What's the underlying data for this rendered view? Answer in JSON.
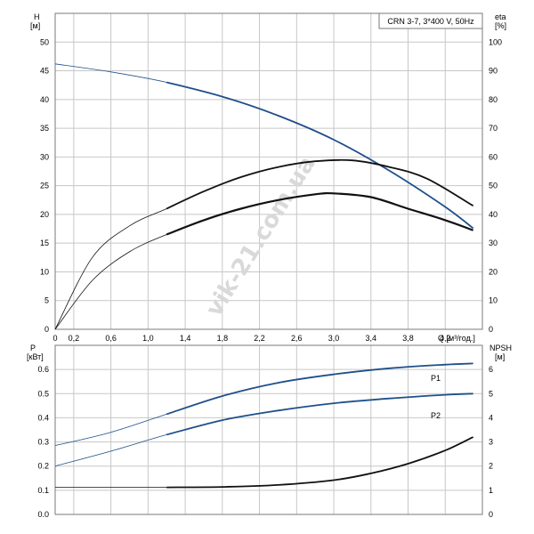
{
  "colors": {
    "blue": "#1f4f8a",
    "black": "#111111",
    "grid": "#c7c7c7"
  },
  "chart_data": [
    {
      "type": "line",
      "title": "CRN 3-7, 3*400 V, 50Hz",
      "ylabel_left": [
        "H",
        "[м]"
      ],
      "ylabel_right": [
        "eta",
        "[%]"
      ],
      "xlabel": "Q [м³/год.]",
      "xlim": [
        0,
        4.6
      ],
      "ylim": [
        0,
        55
      ],
      "ylim_right": [
        0,
        110
      ],
      "x_ticks": [
        "0",
        "0,2",
        "0,6",
        "1,0",
        "1,4",
        "1,8",
        "2,2",
        "2,6",
        "3,0",
        "3,4",
        "3,8",
        "4,2"
      ],
      "y_ticks": [
        "0",
        "5",
        "10",
        "15",
        "20",
        "25",
        "30",
        "35",
        "40",
        "45",
        "50"
      ],
      "y_ticks_right": [
        "0",
        "10",
        "20",
        "30",
        "40",
        "50",
        "60",
        "70",
        "80",
        "90",
        "100"
      ],
      "grid": true,
      "series": [
        {
          "axis": "left",
          "color": "blue",
          "x": [
            0,
            0.6,
            1.2,
            1.8,
            2.4,
            3.0,
            3.6,
            4.2,
            4.5
          ],
          "values": [
            46.2,
            44.8,
            43.0,
            40.5,
            37.2,
            33.0,
            27.6,
            21.3,
            17.6
          ]
        },
        {
          "axis": "right",
          "color": "black",
          "x": [
            0,
            0.4,
            0.8,
            1.2,
            1.6,
            2.0,
            2.4,
            2.8,
            3.2,
            3.6,
            4.0,
            4.5
          ],
          "values": [
            0,
            25,
            36,
            42,
            48,
            53,
            56.5,
            58.5,
            58.8,
            56.5,
            52.5,
            43
          ]
        },
        {
          "axis": "right",
          "color": "black",
          "x": [
            0,
            0.4,
            0.8,
            1.2,
            1.6,
            2.0,
            2.4,
            2.8,
            3.0,
            3.4,
            3.8,
            4.2,
            4.5
          ],
          "values": [
            0,
            17,
            27,
            33,
            38,
            42,
            45,
            47,
            47.3,
            46,
            42,
            38,
            34.5
          ]
        }
      ]
    },
    {
      "type": "line",
      "ylabel_left": [
        "P",
        "[кВт]"
      ],
      "ylabel_right": [
        "NPSH",
        "[м]"
      ],
      "xlim": [
        0,
        4.6
      ],
      "ylim": [
        0,
        0.7
      ],
      "ylim_right": [
        0,
        7
      ],
      "y_ticks": [
        "0.0",
        "0.1",
        "0.2",
        "0.3",
        "0.4",
        "0.5",
        "0.6"
      ],
      "y_ticks_right": [
        "0",
        "1",
        "2",
        "3",
        "4",
        "5",
        "6"
      ],
      "grid": true,
      "series": [
        {
          "name": "P1",
          "axis": "left",
          "color": "blue",
          "x": [
            0,
            0.6,
            1.2,
            1.8,
            2.4,
            3.0,
            3.6,
            4.2,
            4.5
          ],
          "values": [
            0.285,
            0.34,
            0.415,
            0.49,
            0.545,
            0.58,
            0.605,
            0.62,
            0.625
          ]
        },
        {
          "name": "P2",
          "axis": "left",
          "color": "blue",
          "x": [
            0,
            0.6,
            1.2,
            1.8,
            2.4,
            3.0,
            3.6,
            4.2,
            4.5
          ],
          "values": [
            0.2,
            0.262,
            0.33,
            0.39,
            0.43,
            0.46,
            0.48,
            0.495,
            0.5
          ]
        },
        {
          "axis": "right",
          "color": "black",
          "x": [
            0,
            0.6,
            1.2,
            1.8,
            2.4,
            3.0,
            3.4,
            3.8,
            4.2,
            4.5
          ],
          "values": [
            1.12,
            1.12,
            1.12,
            1.14,
            1.22,
            1.42,
            1.7,
            2.1,
            2.65,
            3.2
          ]
        }
      ]
    }
  ],
  "watermark": "vik-21.com.ua"
}
